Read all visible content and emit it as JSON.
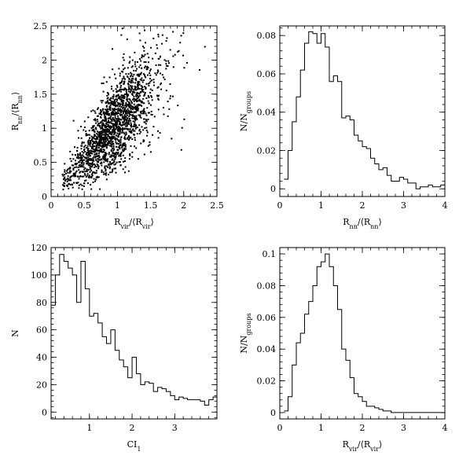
{
  "chart_data": [
    {
      "type": "scatter",
      "id": "scatter",
      "xlabel_main": "R",
      "xlabel_sub": "vir",
      "xlabel_bracket": "/⟨R",
      "xlabel_bracket_sub": "vir",
      "xlabel_close": "⟩",
      "ylabel_main": "R",
      "ylabel_sub": "nn",
      "ylabel_bracket": "/⟨R",
      "ylabel_bracket_sub": "nn",
      "ylabel_close": "⟩",
      "xlim": [
        0,
        2.5
      ],
      "ylim": [
        0,
        2.5
      ],
      "xticks": [
        "0",
        "0.5",
        "1",
        "1.5",
        "2",
        "2.5"
      ],
      "xtick_values": [
        0,
        0.5,
        1,
        1.5,
        2,
        2.5
      ],
      "yticks": [
        "0",
        "0.5",
        "1",
        "1.5",
        "2",
        "2.5"
      ],
      "ytick_values": [
        0,
        0.5,
        1,
        1.5,
        2,
        2.5
      ],
      "distribution": {
        "n_points": 1900,
        "x_peak": 0.95,
        "slope": 1.1,
        "x_min": 0.17,
        "x_max": 2.5
      }
    },
    {
      "type": "histogram",
      "id": "hist-rnn",
      "xlabel_main": "R",
      "xlabel_sub": "nn",
      "xlabel_bracket": "/⟨R",
      "xlabel_bracket_sub": "nn",
      "xlabel_close": "⟩",
      "ylabel_main": "N/N",
      "ylabel_sub": "groups",
      "xlim": [
        0,
        4
      ],
      "ylim": [
        -0.004,
        0.085
      ],
      "xticks": [
        "0",
        "1",
        "2",
        "3",
        "4"
      ],
      "xtick_values": [
        0,
        1,
        2,
        3,
        4
      ],
      "yticks": [
        "0",
        "0.02",
        "0.04",
        "0.06",
        "0.08"
      ],
      "ytick_values": [
        0,
        0.02,
        0.04,
        0.06,
        0.08
      ],
      "bin_width": 0.1,
      "x_start": 0.1,
      "values": [
        0.005,
        0.02,
        0.035,
        0.048,
        0.062,
        0.076,
        0.082,
        0.081,
        0.076,
        0.081,
        0.074,
        0.056,
        0.059,
        0.056,
        0.037,
        0.038,
        0.036,
        0.028,
        0.025,
        0.022,
        0.021,
        0.016,
        0.013,
        0.01,
        0.011,
        0.007,
        0.004,
        0.004,
        0.006,
        0.005,
        0.003,
        0.003,
        0.0,
        0.001,
        0.001,
        0.002,
        0.001,
        0.001,
        0.002
      ]
    },
    {
      "type": "histogram",
      "id": "hist-ci",
      "xlabel_main": "CI",
      "xlabel_sub": "1",
      "ylabel_main": "N",
      "ylabel_sub": "",
      "xlim": [
        0.1,
        3.99
      ],
      "ylim": [
        -5,
        120
      ],
      "xticks": [
        "1",
        "2",
        "3"
      ],
      "xtick_values": [
        1,
        2,
        3
      ],
      "yticks": [
        "0",
        "20",
        "40",
        "60",
        "80",
        "100",
        "120"
      ],
      "ytick_values": [
        0,
        20,
        40,
        60,
        80,
        100,
        120
      ],
      "bin_width": 0.1,
      "x_start": 0.1,
      "values": [
        78,
        100,
        115,
        110,
        105,
        100,
        80,
        110,
        90,
        70,
        72,
        65,
        55,
        50,
        60,
        45,
        38,
        33,
        25,
        40,
        28,
        20,
        22,
        21,
        15,
        18,
        17,
        15,
        12,
        9,
        11,
        10,
        9,
        9,
        9,
        8,
        5,
        9,
        11
      ]
    },
    {
      "type": "histogram",
      "id": "hist-rvir",
      "xlabel_main": "R",
      "xlabel_sub": "vir",
      "xlabel_bracket": "/⟨R",
      "xlabel_bracket_sub": "vir",
      "xlabel_close": "⟩",
      "ylabel_main": "N/N",
      "ylabel_sub": "groups",
      "xlim": [
        0,
        4
      ],
      "ylim": [
        -0.004,
        0.104
      ],
      "xticks": [
        "0",
        "1",
        "2",
        "3",
        "4"
      ],
      "xtick_values": [
        0,
        1,
        2,
        3,
        4
      ],
      "yticks": [
        "0",
        "0.02",
        "0.04",
        "0.06",
        "0.08",
        "0.1"
      ],
      "ytick_values": [
        0,
        0.02,
        0.04,
        0.06,
        0.08,
        0.1
      ],
      "bin_width": 0.1,
      "x_start": 0.1,
      "values": [
        0.001,
        0.01,
        0.03,
        0.044,
        0.05,
        0.062,
        0.07,
        0.08,
        0.092,
        0.095,
        0.1,
        0.092,
        0.08,
        0.065,
        0.04,
        0.033,
        0.022,
        0.012,
        0.01,
        0.007,
        0.004,
        0.004,
        0.003,
        0.002,
        0.001,
        0.001,
        0.0,
        0.0,
        0.0,
        0.0,
        0.0,
        0.0,
        0.0,
        0.0,
        0.0,
        0.0,
        0.0,
        0.0,
        0.0
      ]
    }
  ]
}
